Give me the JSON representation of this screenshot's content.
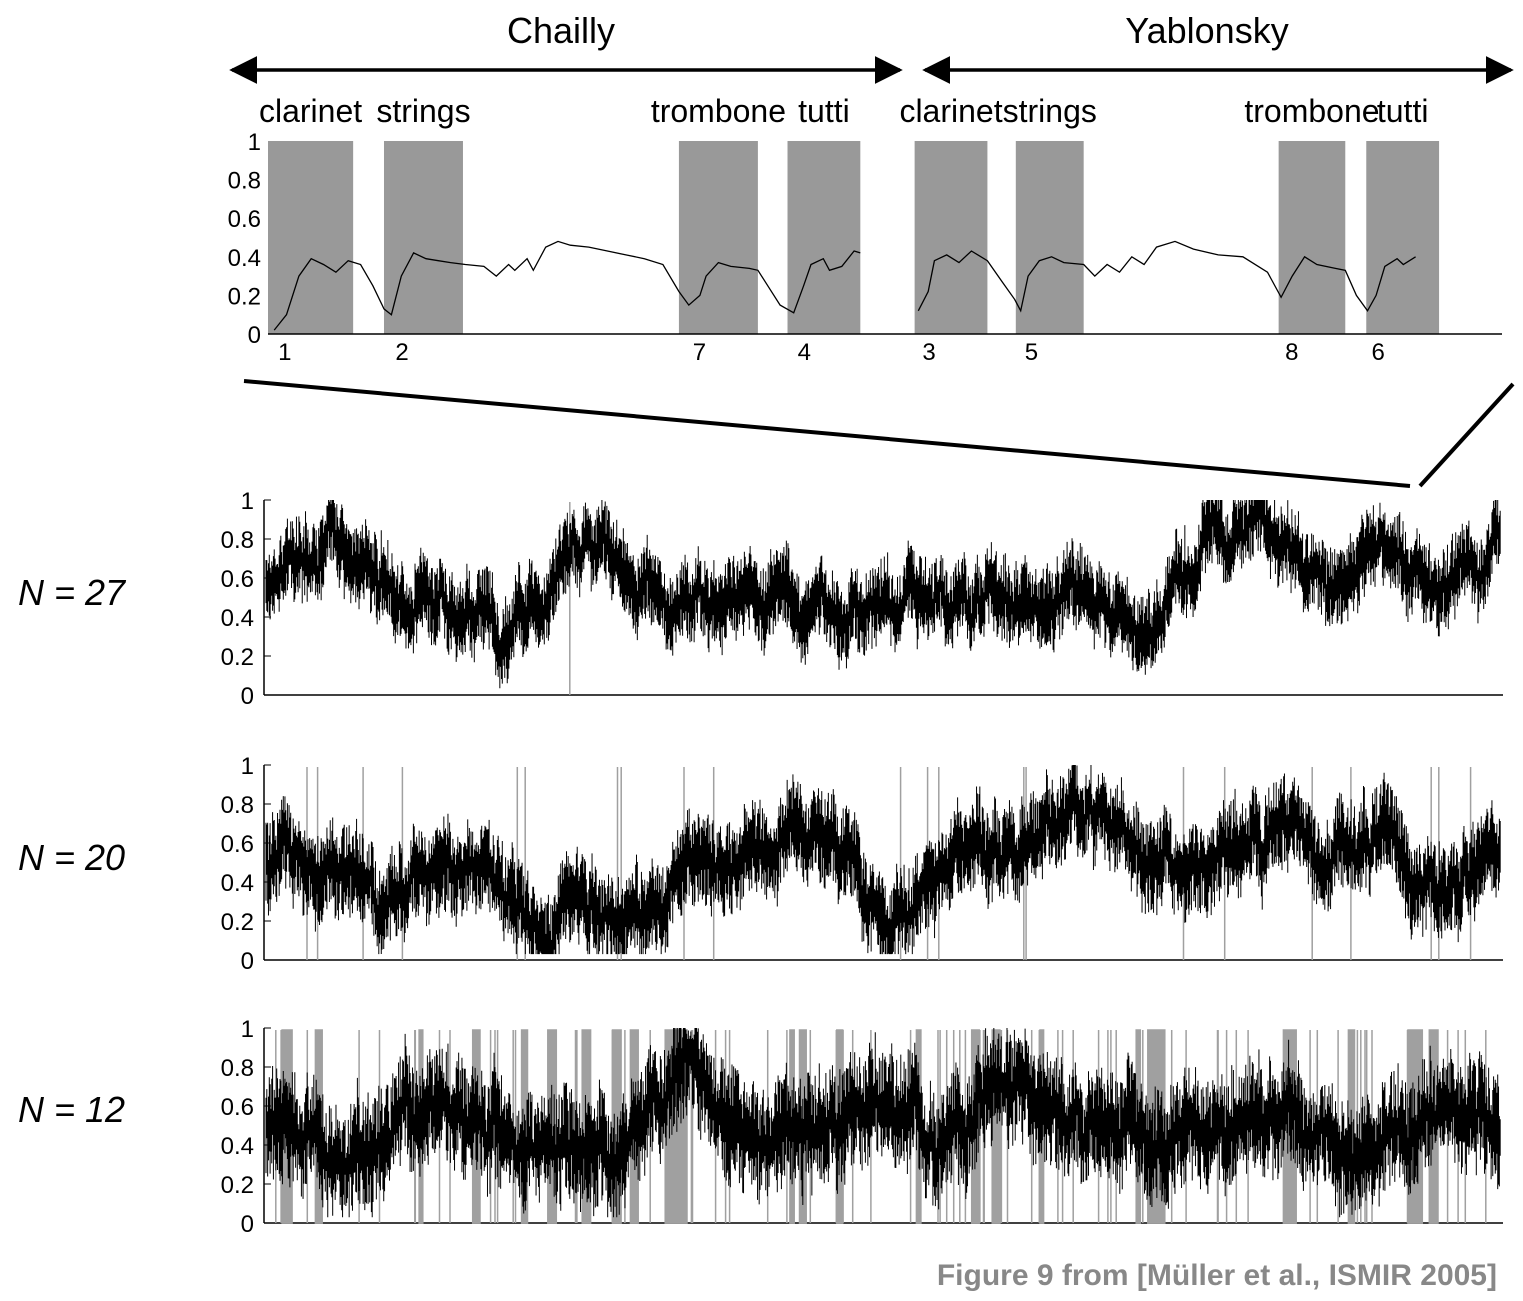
{
  "performers": [
    {
      "name": "Chailly"
    },
    {
      "name": "Yablonsky"
    }
  ],
  "caption": "Figure 9 from [Müller et al., ISMIR 2005]",
  "colors": {
    "shade": "#999999",
    "line": "#000000",
    "rare_low": "#a0a0a0",
    "caption": "#888888"
  },
  "chart_data": [
    {
      "type": "line",
      "panel": "top",
      "yticks": [
        "0",
        "0.2",
        "0.4",
        "0.6",
        "0.8",
        "1"
      ],
      "ylim": [
        0,
        1
      ],
      "xlim": [
        0,
        100
      ],
      "segments": [
        {
          "label": "clarinet",
          "start": 0,
          "end": 6.9,
          "marker": "1",
          "marker_x": 0.5
        },
        {
          "label": "strings",
          "start": 9.4,
          "end": 15.8,
          "marker": "2",
          "marker_x": 10.0
        },
        {
          "label": "trombone",
          "start": 33.3,
          "end": 39.7,
          "marker": "7",
          "marker_x": 34.1
        },
        {
          "label": "tutti",
          "start": 42.1,
          "end": 48.0,
          "marker": "4",
          "marker_x": 42.6
        },
        {
          "label": "clarinet",
          "start": 52.4,
          "end": 58.3,
          "marker": "3",
          "marker_x": 52.7
        },
        {
          "label": "strings",
          "start": 60.6,
          "end": 66.1,
          "marker": "5",
          "marker_x": 61.0
        },
        {
          "label": "trombone",
          "start": 81.9,
          "end": 87.3,
          "marker": "8",
          "marker_x": 82.1
        },
        {
          "label": "tutti",
          "start": 89.0,
          "end": 94.9,
          "marker": "6",
          "marker_x": 89.1
        }
      ],
      "curve_a": [
        [
          0.5,
          0.02
        ],
        [
          1.5,
          0.1
        ],
        [
          2.5,
          0.3
        ],
        [
          3.5,
          0.39
        ],
        [
          4.5,
          0.36
        ],
        [
          5.5,
          0.32
        ],
        [
          6.5,
          0.38
        ],
        [
          7.5,
          0.36
        ],
        [
          8.5,
          0.25
        ],
        [
          9.4,
          0.13
        ],
        [
          10.0,
          0.1
        ],
        [
          10.8,
          0.3
        ],
        [
          11.8,
          0.42
        ],
        [
          12.8,
          0.39
        ],
        [
          13.8,
          0.38
        ],
        [
          14.8,
          0.37
        ],
        [
          16.0,
          0.36
        ],
        [
          17.5,
          0.35
        ],
        [
          18.5,
          0.3
        ],
        [
          19.5,
          0.36
        ],
        [
          20.0,
          0.33
        ],
        [
          21.0,
          0.39
        ],
        [
          21.5,
          0.33
        ],
        [
          22.5,
          0.45
        ],
        [
          23.5,
          0.48
        ],
        [
          24.5,
          0.46
        ],
        [
          26,
          0.45
        ],
        [
          27.5,
          0.43
        ],
        [
          29,
          0.41
        ],
        [
          30.5,
          0.39
        ],
        [
          32,
          0.36
        ],
        [
          33.3,
          0.22
        ],
        [
          34.1,
          0.15
        ],
        [
          35,
          0.2
        ],
        [
          35.5,
          0.3
        ],
        [
          36.5,
          0.37
        ],
        [
          37.5,
          0.35
        ],
        [
          39,
          0.34
        ],
        [
          39.7,
          0.33
        ],
        [
          40.5,
          0.25
        ],
        [
          41.5,
          0.15
        ],
        [
          42.6,
          0.11
        ],
        [
          43.4,
          0.25
        ],
        [
          44.0,
          0.36
        ],
        [
          45.0,
          0.39
        ],
        [
          45.5,
          0.33
        ],
        [
          46.5,
          0.35
        ],
        [
          47.5,
          0.43
        ],
        [
          48.0,
          0.42
        ]
      ],
      "curve_b": [
        [
          52.7,
          0.12
        ],
        [
          53.5,
          0.22
        ],
        [
          54,
          0.38
        ],
        [
          55,
          0.41
        ],
        [
          56,
          0.37
        ],
        [
          57,
          0.43
        ],
        [
          58.3,
          0.38
        ],
        [
          59.5,
          0.27
        ],
        [
          60.5,
          0.18
        ],
        [
          61.0,
          0.12
        ],
        [
          61.6,
          0.3
        ],
        [
          62.5,
          0.38
        ],
        [
          63.5,
          0.4
        ],
        [
          64.5,
          0.37
        ],
        [
          66.1,
          0.36
        ],
        [
          67,
          0.3
        ],
        [
          68,
          0.36
        ],
        [
          69,
          0.32
        ],
        [
          70,
          0.4
        ],
        [
          71,
          0.36
        ],
        [
          72,
          0.45
        ],
        [
          73.5,
          0.48
        ],
        [
          75,
          0.44
        ],
        [
          77,
          0.41
        ],
        [
          79,
          0.4
        ],
        [
          81,
          0.32
        ],
        [
          82.1,
          0.19
        ],
        [
          83,
          0.3
        ],
        [
          84,
          0.4
        ],
        [
          85,
          0.36
        ],
        [
          86.5,
          0.34
        ],
        [
          87.3,
          0.33
        ],
        [
          88.2,
          0.2
        ],
        [
          89.1,
          0.12
        ],
        [
          89.8,
          0.2
        ],
        [
          90.5,
          0.35
        ],
        [
          91.5,
          0.39
        ],
        [
          92,
          0.36
        ],
        [
          93,
          0.4
        ]
      ]
    },
    {
      "type": "line",
      "label": "N = 27",
      "yticks": [
        "0",
        "0.2",
        "0.4",
        "0.6",
        "0.8",
        "1"
      ],
      "ylim": [
        0,
        1
      ],
      "mean": 0.54,
      "spread": 0.16,
      "dips": 1
    },
    {
      "type": "line",
      "label": "N = 20",
      "yticks": [
        "0",
        "0.2",
        "0.4",
        "0.6",
        "0.8",
        "1"
      ],
      "ylim": [
        0,
        1
      ],
      "mean": 0.52,
      "spread": 0.19,
      "dips": 22
    },
    {
      "type": "line",
      "label": "N = 12",
      "yticks": [
        "0",
        "0.2",
        "0.4",
        "0.6",
        "0.8",
        "1"
      ],
      "ylim": [
        0,
        1
      ],
      "mean": 0.55,
      "spread": 0.25,
      "dips": 120
    }
  ]
}
